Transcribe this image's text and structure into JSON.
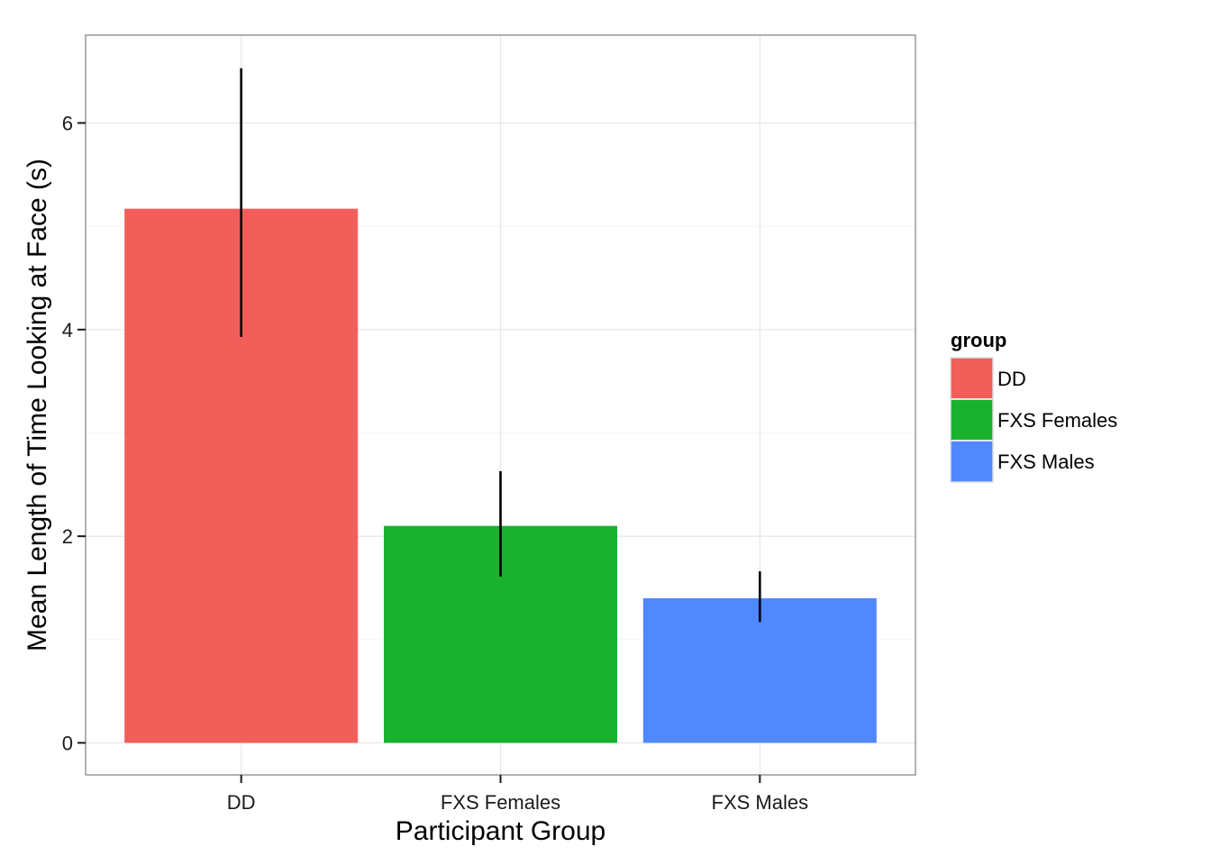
{
  "chart_data": {
    "type": "bar",
    "categories": [
      "DD",
      "FXS Females",
      "FXS Males"
    ],
    "values": [
      5.17,
      2.1,
      1.4
    ],
    "error_bars": [
      {
        "low": 3.93,
        "high": 6.53
      },
      {
        "low": 1.61,
        "high": 2.63
      },
      {
        "low": 1.17,
        "high": 1.66
      }
    ],
    "colors": [
      "#F25F5A",
      "#18B22E",
      "#5088FF"
    ],
    "xlabel": "Participant Group",
    "ylabel": "Mean Length of Time Looking at Face (s)",
    "ylim": [
      -0.31,
      6.85
    ],
    "yticks": [
      0,
      2,
      4,
      6
    ],
    "ytick_labels": [
      "0",
      "2",
      "4",
      "6"
    ],
    "grid": true,
    "legend": {
      "title": "group",
      "position": "right",
      "entries": [
        "DD",
        "FXS Females",
        "FXS Males"
      ]
    }
  }
}
